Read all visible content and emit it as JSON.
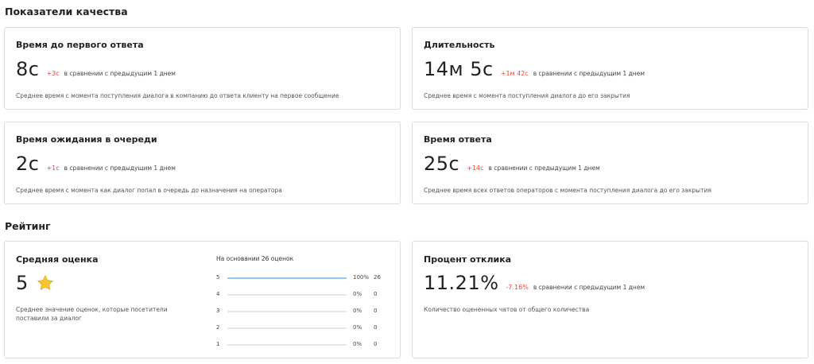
{
  "quality": {
    "title": "Показатели качества",
    "cards": [
      {
        "title": "Время до первого ответа",
        "value": "8с",
        "delta": "+3с",
        "compare": "в сравнении с предыдущим 1 днем",
        "description": "Среднее время с момента поступления диалога в компанию до ответа клиенту на первое сообщение"
      },
      {
        "title": "Длительность",
        "value": "14м 5с",
        "delta": "+1м 42с",
        "compare": "в сравнении с предыдущим 1 днем",
        "description": "Среднее время с момента поступления диалога до его закрытия"
      },
      {
        "title": "Время ожидания в очереди",
        "value": "2с",
        "delta": "+1с",
        "compare": "в сравнении с предыдущим 1 днем",
        "description": "Среднее время с момента как диалог попал в очередь до назначения на оператора"
      },
      {
        "title": "Время ответа",
        "value": "25с",
        "delta": "+14с",
        "compare": "в сравнении с предыдущим 1 днем",
        "description": "Среднее время всех ответов операторов с момента поступления диалога до его закрытия"
      }
    ]
  },
  "rating": {
    "title": "Рейтинг",
    "average": {
      "title": "Средняя оценка",
      "value": "5",
      "icon": "star-icon",
      "description": "Среднее значение оценок, которые посетители поставили за диалог",
      "distribution_header": "На основании 26 оценок",
      "distribution": [
        {
          "label": "5",
          "percent": "100%",
          "fraction": 1.0,
          "count": "26"
        },
        {
          "label": "4",
          "percent": "0%",
          "fraction": 0,
          "count": "0"
        },
        {
          "label": "3",
          "percent": "0%",
          "fraction": 0,
          "count": "0"
        },
        {
          "label": "2",
          "percent": "0%",
          "fraction": 0,
          "count": "0"
        },
        {
          "label": "1",
          "percent": "0%",
          "fraction": 0,
          "count": "0"
        }
      ]
    },
    "response_rate": {
      "title": "Процент отклика",
      "value": "11.21%",
      "delta": "-7.16%",
      "compare": "в сравнении с предыдущим 1 днем",
      "description": "Количество оцененных чатов от общего количества"
    }
  },
  "colors": {
    "delta": "#e8453c",
    "bar_fill": "#8fc8f2",
    "bar_track": "#e6e6e6",
    "card_border": "#dcdcdc",
    "star": "#f7c531"
  }
}
